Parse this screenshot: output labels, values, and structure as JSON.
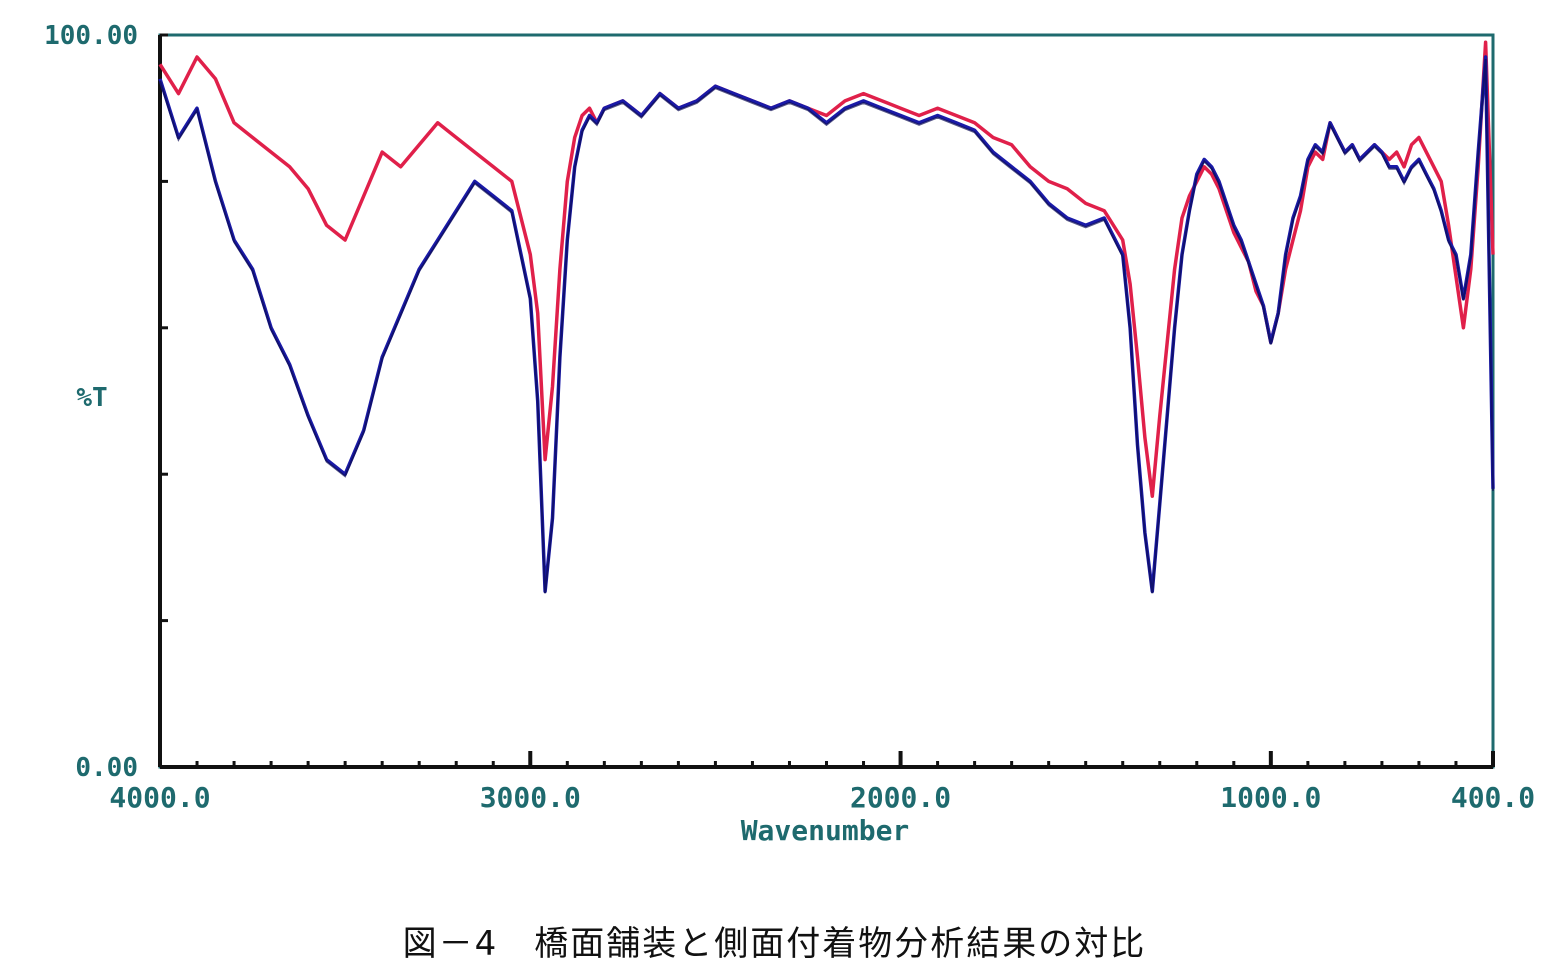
{
  "caption": "図－4　橋面舗装と側面付着物分析結果の対比",
  "chart_data": {
    "type": "line",
    "xlabel": "Wavenumber",
    "ylabel": "%T",
    "xlim": [
      4000,
      400
    ],
    "ylim": [
      0,
      100
    ],
    "x_ticks": [
      {
        "value": 4000,
        "label": "4000.0"
      },
      {
        "value": 3000,
        "label": "3000.0"
      },
      {
        "value": 2000,
        "label": "2000.0"
      },
      {
        "value": 1000,
        "label": "1000.0"
      },
      {
        "value": 400,
        "label": "400.0"
      }
    ],
    "y_ticks": [
      {
        "value": 100,
        "label": "100.00"
      },
      {
        "value": 0,
        "label": "0.00"
      }
    ],
    "colors": {
      "axis": "#1e6a6e",
      "series_red": "#e0204a",
      "series_blue": "#1a1aa8",
      "series_dark": "#0d0d55"
    },
    "series": [
      {
        "color": "#e0204a",
        "x": [
          4000,
          3950,
          3900,
          3850,
          3800,
          3750,
          3700,
          3650,
          3600,
          3550,
          3500,
          3450,
          3400,
          3350,
          3300,
          3250,
          3200,
          3150,
          3100,
          3050,
          3000,
          2980,
          2960,
          2940,
          2920,
          2900,
          2880,
          2860,
          2840,
          2820,
          2800,
          2750,
          2700,
          2650,
          2600,
          2550,
          2500,
          2450,
          2400,
          2350,
          2300,
          2250,
          2200,
          2150,
          2100,
          2050,
          2000,
          1950,
          1900,
          1850,
          1800,
          1750,
          1700,
          1650,
          1600,
          1550,
          1500,
          1450,
          1400,
          1380,
          1360,
          1340,
          1320,
          1300,
          1280,
          1260,
          1240,
          1220,
          1200,
          1180,
          1160,
          1140,
          1120,
          1100,
          1080,
          1060,
          1040,
          1020,
          1000,
          980,
          960,
          940,
          920,
          900,
          880,
          860,
          840,
          820,
          800,
          780,
          760,
          740,
          720,
          700,
          680,
          660,
          640,
          620,
          600,
          580,
          560,
          540,
          520,
          500,
          480,
          460,
          440,
          420,
          400
        ],
        "y": [
          96,
          92,
          97,
          94,
          88,
          86,
          84,
          82,
          79,
          74,
          72,
          78,
          84,
          82,
          85,
          88,
          86,
          84,
          82,
          80,
          70,
          62,
          42,
          52,
          68,
          80,
          86,
          89,
          90,
          88,
          90,
          91,
          89,
          92,
          90,
          91,
          93,
          92,
          91,
          90,
          91,
          90,
          89,
          91,
          92,
          91,
          90,
          89,
          90,
          89,
          88,
          86,
          85,
          82,
          80,
          79,
          77,
          76,
          72,
          66,
          56,
          45,
          37,
          48,
          58,
          68,
          75,
          78,
          80,
          82,
          81,
          79,
          76,
          73,
          71,
          69,
          65,
          63,
          58,
          62,
          68,
          72,
          76,
          82,
          84,
          83,
          88,
          86,
          84,
          85,
          83,
          84,
          85,
          84,
          83,
          84,
          82,
          85,
          86,
          84,
          82,
          80,
          74,
          67,
          60,
          68,
          82,
          99,
          70
        ]
      },
      {
        "color": "#1a1aa8",
        "x": [
          4000,
          3950,
          3900,
          3850,
          3800,
          3750,
          3700,
          3650,
          3600,
          3550,
          3500,
          3450,
          3400,
          3350,
          3300,
          3250,
          3200,
          3150,
          3100,
          3050,
          3000,
          2980,
          2960,
          2940,
          2920,
          2900,
          2880,
          2860,
          2840,
          2820,
          2800,
          2750,
          2700,
          2650,
          2600,
          2550,
          2500,
          2450,
          2400,
          2350,
          2300,
          2250,
          2200,
          2150,
          2100,
          2050,
          2000,
          1950,
          1900,
          1850,
          1800,
          1750,
          1700,
          1650,
          1600,
          1550,
          1500,
          1450,
          1400,
          1380,
          1360,
          1340,
          1320,
          1300,
          1280,
          1260,
          1240,
          1220,
          1200,
          1180,
          1160,
          1140,
          1120,
          1100,
          1080,
          1060,
          1040,
          1020,
          1000,
          980,
          960,
          940,
          920,
          900,
          880,
          860,
          840,
          820,
          800,
          780,
          760,
          740,
          720,
          700,
          680,
          660,
          640,
          620,
          600,
          580,
          560,
          540,
          520,
          500,
          480,
          460,
          440,
          420,
          400
        ],
        "y": [
          94,
          86,
          90,
          80,
          72,
          68,
          60,
          55,
          48,
          42,
          40,
          46,
          56,
          62,
          68,
          72,
          76,
          80,
          78,
          76,
          64,
          50,
          24,
          34,
          56,
          72,
          82,
          87,
          89,
          88,
          90,
          91,
          89,
          92,
          90,
          91,
          93,
          92,
          91,
          90,
          91,
          90,
          88,
          90,
          91,
          90,
          89,
          88,
          89,
          88,
          87,
          84,
          82,
          80,
          77,
          75,
          74,
          75,
          70,
          60,
          44,
          32,
          24,
          36,
          48,
          60,
          70,
          76,
          81,
          83,
          82,
          80,
          77,
          74,
          72,
          69,
          66,
          63,
          58,
          62,
          70,
          75,
          78,
          83,
          85,
          84,
          88,
          86,
          84,
          85,
          83,
          84,
          85,
          84,
          82,
          82,
          80,
          82,
          83,
          81,
          79,
          76,
          72,
          70,
          64,
          70,
          84,
          97,
          38
        ]
      }
    ]
  }
}
